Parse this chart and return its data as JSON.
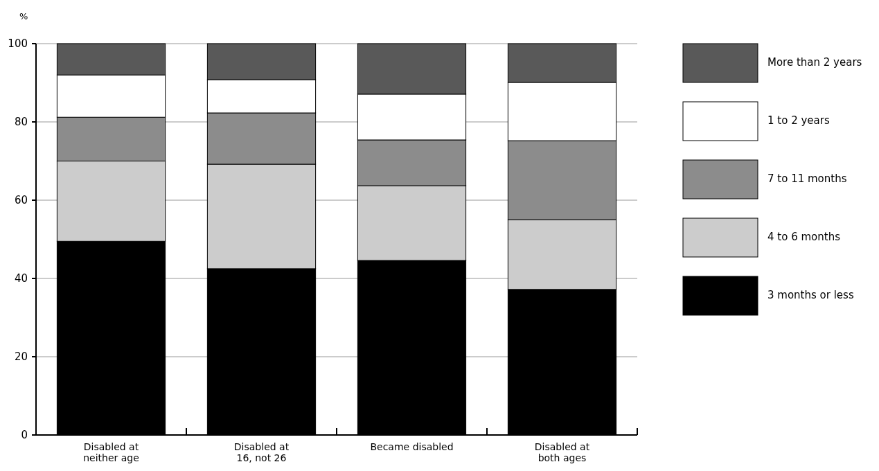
{
  "chart_data": {
    "type": "bar",
    "stacked": true,
    "ylabel": "%",
    "categories": [
      "Disabled at\nneither age",
      "Disabled at\n16, not 26",
      "Became disabled",
      "Disabled at\nboth ages"
    ],
    "series": [
      {
        "name": "3 months or less",
        "color": "#000000",
        "values": [
          49.5,
          42.5,
          44.6,
          37.2
        ]
      },
      {
        "name": "4 to 6 months",
        "color": "#cccccc",
        "values": [
          20.5,
          26.7,
          19.1,
          17.8
        ]
      },
      {
        "name": "7 to 11 months",
        "color": "#8c8c8c",
        "values": [
          11.2,
          13.1,
          11.7,
          20.2
        ]
      },
      {
        "name": "1 to 2 years",
        "color": "#ffffff",
        "values": [
          10.8,
          8.5,
          11.7,
          14.9
        ]
      },
      {
        "name": "More than 2 years",
        "color": "#595959",
        "values": [
          8,
          9.2,
          12.9,
          9.9
        ]
      }
    ],
    "ylim": [
      0,
      100
    ],
    "yticks": [
      0,
      20,
      40,
      60,
      80,
      100
    ],
    "grid": "y",
    "legend": "right"
  }
}
